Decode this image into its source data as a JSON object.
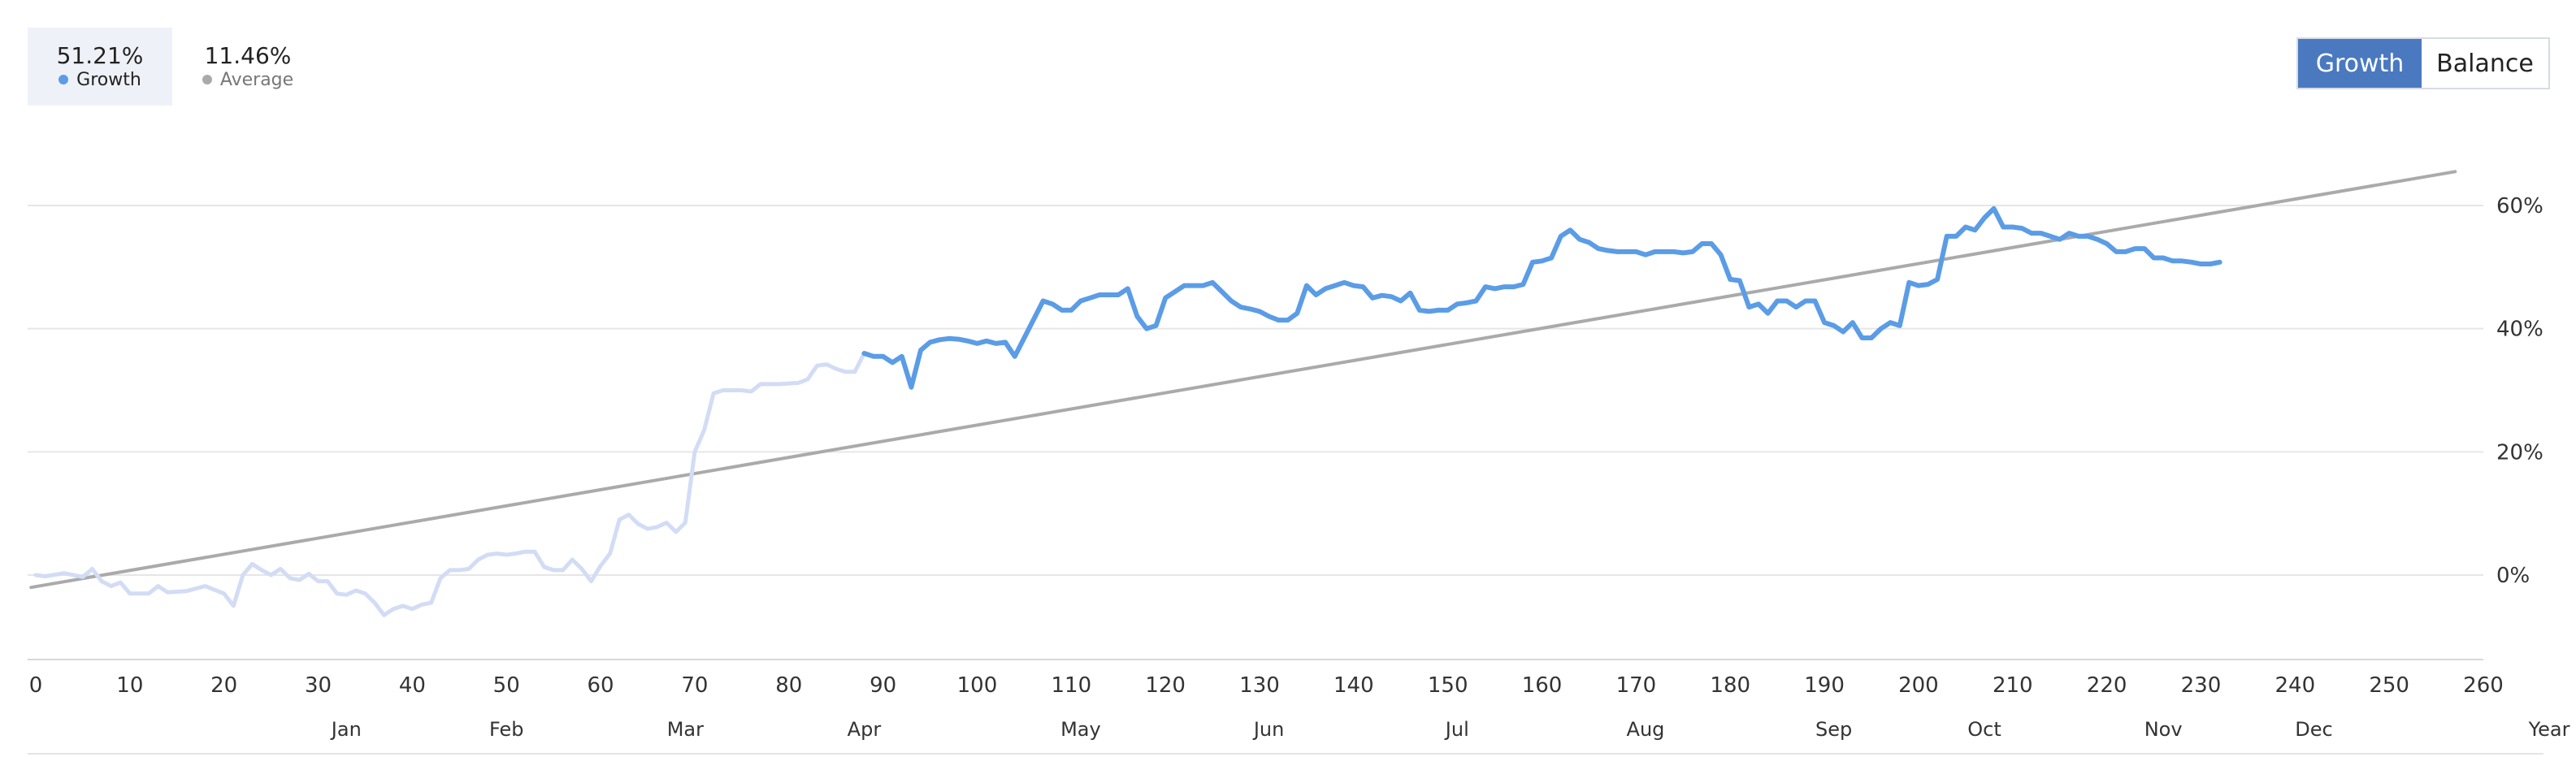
{
  "legend": {
    "growth": {
      "value": "51.21%",
      "label": "Growth",
      "color": "#5b9ce6"
    },
    "average": {
      "value": "11.46%",
      "label": "Average",
      "color": "#aaaaaa"
    }
  },
  "toggle": {
    "growth_label": "Growth",
    "balance_label": "Balance",
    "active_color": "#4a79c0"
  },
  "chart_data": {
    "type": "line",
    "xlim": [
      0,
      260
    ],
    "ylim": [
      -14,
      72
    ],
    "x_ticks": [
      0,
      10,
      20,
      30,
      40,
      50,
      60,
      70,
      80,
      90,
      100,
      110,
      120,
      130,
      140,
      150,
      160,
      170,
      180,
      190,
      200,
      210,
      220,
      230,
      240,
      250,
      260
    ],
    "y_ticks": [
      0,
      20,
      40,
      60
    ],
    "y_tick_labels": [
      "0%",
      "20%",
      "40%",
      "60%"
    ],
    "months": [
      {
        "label": "Jan",
        "x": 33
      },
      {
        "label": "Feb",
        "x": 50
      },
      {
        "label": "Mar",
        "x": 69
      },
      {
        "label": "Apr",
        "x": 88
      },
      {
        "label": "May",
        "x": 111
      },
      {
        "label": "Jun",
        "x": 131
      },
      {
        "label": "Jul",
        "x": 151
      },
      {
        "label": "Aug",
        "x": 171
      },
      {
        "label": "Sep",
        "x": 191
      },
      {
        "label": "Oct",
        "x": 207
      },
      {
        "label": "Nov",
        "x": 226
      },
      {
        "label": "Dec",
        "x": 242
      },
      {
        "label": "Year",
        "x": 267
      }
    ],
    "grid": "horizontal",
    "series": [
      {
        "name": "Growth",
        "color": "#5b9ce6",
        "faded_until_x": 88,
        "faded_color": "#d3dcf5",
        "points": [
          [
            0,
            0
          ],
          [
            1,
            -0.2
          ],
          [
            3,
            0.3
          ],
          [
            5,
            -0.3
          ],
          [
            6,
            1
          ],
          [
            7,
            -1
          ],
          [
            8,
            -1.8
          ],
          [
            9,
            -1.2
          ],
          [
            10,
            -3
          ],
          [
            12,
            -3
          ],
          [
            13,
            -1.8
          ],
          [
            14,
            -2.8
          ],
          [
            16,
            -2.6
          ],
          [
            18,
            -1.8
          ],
          [
            20,
            -3
          ],
          [
            21,
            -5
          ],
          [
            22,
            0
          ],
          [
            23,
            1.8
          ],
          [
            24,
            0.8
          ],
          [
            25,
            0
          ],
          [
            26,
            1
          ],
          [
            27,
            -0.5
          ],
          [
            28,
            -0.8
          ],
          [
            29,
            0.2
          ],
          [
            30,
            -1
          ],
          [
            31,
            -1
          ],
          [
            32,
            -3
          ],
          [
            33,
            -3.2
          ],
          [
            34,
            -2.5
          ],
          [
            35,
            -3
          ],
          [
            36,
            -4.5
          ],
          [
            37,
            -6.5
          ],
          [
            38,
            -5.5
          ],
          [
            39,
            -5
          ],
          [
            40,
            -5.5
          ],
          [
            41,
            -4.8
          ],
          [
            42,
            -4.5
          ],
          [
            43,
            -0.5
          ],
          [
            44,
            0.8
          ],
          [
            45,
            0.8
          ],
          [
            46,
            1
          ],
          [
            47,
            2.5
          ],
          [
            48,
            3.3
          ],
          [
            49,
            3.5
          ],
          [
            50,
            3.3
          ],
          [
            51,
            3.5
          ],
          [
            52,
            3.8
          ],
          [
            53,
            3.8
          ],
          [
            54,
            1.3
          ],
          [
            55,
            0.8
          ],
          [
            56,
            0.8
          ],
          [
            57,
            2.5
          ],
          [
            58,
            1
          ],
          [
            59,
            -1
          ],
          [
            60,
            1.5
          ],
          [
            61,
            3.5
          ],
          [
            62,
            9
          ],
          [
            63,
            9.8
          ],
          [
            64,
            8.3
          ],
          [
            65,
            7.5
          ],
          [
            66,
            7.8
          ],
          [
            67,
            8.5
          ],
          [
            68,
            7
          ],
          [
            69,
            8.5
          ],
          [
            70,
            20
          ],
          [
            71,
            23.5
          ],
          [
            72,
            29.5
          ],
          [
            73,
            30
          ],
          [
            75,
            30
          ],
          [
            76,
            29.8
          ],
          [
            77,
            31
          ],
          [
            79,
            31
          ],
          [
            81,
            31.2
          ],
          [
            82,
            31.8
          ],
          [
            83,
            34
          ],
          [
            84,
            34.2
          ],
          [
            85,
            33.5
          ],
          [
            86,
            33
          ],
          [
            87,
            33
          ],
          [
            88,
            36
          ],
          [
            89,
            35.5
          ],
          [
            90,
            35.5
          ],
          [
            91,
            34.5
          ],
          [
            92,
            35.5
          ],
          [
            93,
            30.5
          ],
          [
            94,
            36.5
          ],
          [
            95,
            37.8
          ],
          [
            96,
            38.2
          ],
          [
            97,
            38.4
          ],
          [
            98,
            38.3
          ],
          [
            99,
            38
          ],
          [
            100,
            37.6
          ],
          [
            101,
            38
          ],
          [
            102,
            37.6
          ],
          [
            103,
            37.8
          ],
          [
            104,
            35.5
          ],
          [
            105,
            38.5
          ],
          [
            106,
            41.5
          ],
          [
            107,
            44.5
          ],
          [
            108,
            44
          ],
          [
            109,
            43
          ],
          [
            110,
            43
          ],
          [
            111,
            44.5
          ],
          [
            112,
            45
          ],
          [
            113,
            45.5
          ],
          [
            114,
            45.5
          ],
          [
            115,
            45.5
          ],
          [
            116,
            46.5
          ],
          [
            117,
            42
          ],
          [
            118,
            40
          ],
          [
            119,
            40.5
          ],
          [
            120,
            45
          ],
          [
            121,
            46
          ],
          [
            122,
            47
          ],
          [
            123,
            47
          ],
          [
            124,
            47
          ],
          [
            125,
            47.5
          ],
          [
            126,
            46
          ],
          [
            127,
            44.5
          ],
          [
            128,
            43.5
          ],
          [
            129,
            43.2
          ],
          [
            130,
            42.8
          ],
          [
            131,
            42
          ],
          [
            132,
            41.4
          ],
          [
            133,
            41.4
          ],
          [
            134,
            42.5
          ],
          [
            135,
            47
          ],
          [
            136,
            45.5
          ],
          [
            137,
            46.5
          ],
          [
            138,
            47
          ],
          [
            139,
            47.5
          ],
          [
            140,
            47
          ],
          [
            141,
            46.8
          ],
          [
            142,
            45
          ],
          [
            143,
            45.4
          ],
          [
            144,
            45.2
          ],
          [
            145,
            44.5
          ],
          [
            146,
            45.8
          ],
          [
            147,
            43
          ],
          [
            148,
            42.8
          ],
          [
            149,
            43
          ],
          [
            150,
            43
          ],
          [
            151,
            44
          ],
          [
            152,
            44.2
          ],
          [
            153,
            44.5
          ],
          [
            154,
            46.8
          ],
          [
            155,
            46.5
          ],
          [
            156,
            46.8
          ],
          [
            157,
            46.8
          ],
          [
            158,
            47.2
          ],
          [
            159,
            50.8
          ],
          [
            160,
            51
          ],
          [
            161,
            51.5
          ],
          [
            162,
            55
          ],
          [
            163,
            56
          ],
          [
            164,
            54.5
          ],
          [
            165,
            54
          ],
          [
            166,
            53
          ],
          [
            167,
            52.7
          ],
          [
            168,
            52.5
          ],
          [
            170,
            52.5
          ],
          [
            171,
            52
          ],
          [
            172,
            52.5
          ],
          [
            174,
            52.5
          ],
          [
            175,
            52.3
          ],
          [
            176,
            52.5
          ],
          [
            177,
            53.8
          ],
          [
            178,
            53.8
          ],
          [
            179,
            52
          ],
          [
            180,
            48
          ],
          [
            181,
            47.8
          ],
          [
            182,
            43.5
          ],
          [
            183,
            44
          ],
          [
            184,
            42.5
          ],
          [
            185,
            44.5
          ],
          [
            186,
            44.5
          ],
          [
            187,
            43.5
          ],
          [
            188,
            44.5
          ],
          [
            189,
            44.5
          ],
          [
            190,
            41
          ],
          [
            191,
            40.5
          ],
          [
            192,
            39.5
          ],
          [
            193,
            41
          ],
          [
            194,
            38.5
          ],
          [
            195,
            38.5
          ],
          [
            196,
            40
          ],
          [
            197,
            41
          ],
          [
            198,
            40.5
          ],
          [
            199,
            47.5
          ],
          [
            200,
            47
          ],
          [
            201,
            47.2
          ],
          [
            202,
            48
          ],
          [
            203,
            55
          ],
          [
            204,
            55
          ],
          [
            205,
            56.5
          ],
          [
            206,
            56
          ],
          [
            207,
            58
          ],
          [
            208,
            59.5
          ],
          [
            209,
            56.5
          ],
          [
            210,
            56.5
          ],
          [
            211,
            56.3
          ],
          [
            212,
            55.5
          ],
          [
            213,
            55.5
          ],
          [
            214,
            55
          ],
          [
            215,
            54.5
          ],
          [
            216,
            55.5
          ],
          [
            217,
            55
          ],
          [
            218,
            55
          ],
          [
            219,
            54.5
          ],
          [
            220,
            53.8
          ],
          [
            221,
            52.5
          ],
          [
            222,
            52.5
          ],
          [
            223,
            53
          ],
          [
            224,
            53
          ],
          [
            225,
            51.5
          ],
          [
            226,
            51.5
          ],
          [
            227,
            51
          ],
          [
            228,
            51
          ],
          [
            229,
            50.8
          ],
          [
            230,
            50.5
          ],
          [
            231,
            50.5
          ],
          [
            232,
            50.8
          ]
        ]
      },
      {
        "name": "Average",
        "color": "#aaaaaa",
        "points": [
          [
            -0.5,
            -2
          ],
          [
            257,
            65.5
          ]
        ]
      }
    ]
  }
}
